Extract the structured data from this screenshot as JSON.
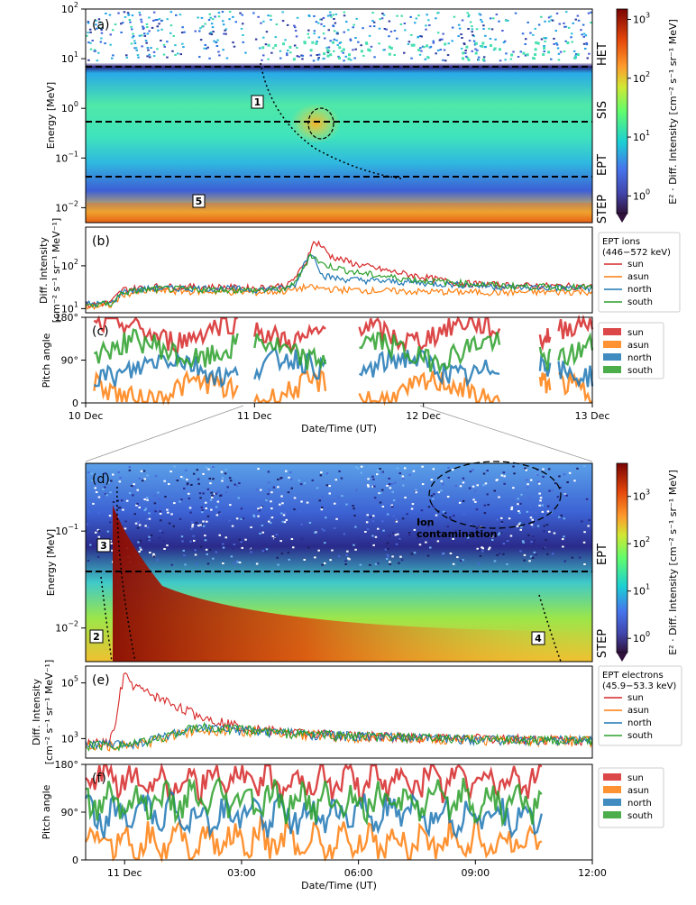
{
  "chart_data": [
    {
      "id": "a",
      "type": "heatmap",
      "panel_label": "(a)",
      "ylabel": "Energy [MeV]",
      "yscale": "log",
      "ylim": [
        0.005,
        100
      ],
      "y_ticks": [
        {
          "value": 0.01,
          "base": "10",
          "exp": "−2"
        },
        {
          "value": 0.1,
          "base": "10",
          "exp": "−1"
        },
        {
          "value": 1,
          "base": "10",
          "exp": "0"
        },
        {
          "value": 10,
          "base": "10",
          "exp": "1"
        },
        {
          "value": 100,
          "base": "10",
          "exp": "2"
        }
      ],
      "x_range_days": [
        0,
        3
      ],
      "instrument_labels": [
        "HET",
        "SIS",
        "EPT",
        "STEP"
      ],
      "boundaries_mev": [
        7,
        0.55,
        0.048
      ],
      "annotations": [
        "1",
        "5"
      ],
      "colorbar": {
        "label": "E² · Diff. Intensity [cm⁻² s⁻¹ sr⁻¹ MeV]",
        "range": [
          0.5,
          1500
        ],
        "ticks": [
          {
            "value": 1,
            "base": "10",
            "exp": "0"
          },
          {
            "value": 10,
            "base": "10",
            "exp": "1"
          },
          {
            "value": 100,
            "base": "10",
            "exp": "2"
          },
          {
            "value": 1000,
            "base": "10",
            "exp": "3"
          }
        ]
      }
    },
    {
      "id": "b",
      "type": "line",
      "panel_label": "(b)",
      "ylabel": "Diff. Intensity",
      "ylabel2": "[cm⁻² s⁻¹ sr⁻¹ MeV⁻¹]",
      "yscale": "log",
      "ylim": [
        8,
        800
      ],
      "y_ticks": [
        {
          "value": 10,
          "base": "10",
          "exp": "1"
        },
        {
          "value": 100,
          "base": "10",
          "exp": "2"
        }
      ],
      "x_range_days": [
        0,
        3
      ],
      "legend_title": [
        "EPT ions",
        "(446−572 keV)"
      ],
      "series": [
        {
          "name": "sun",
          "color": "#d62728",
          "x": [
            0,
            0.15,
            0.22,
            0.4,
            0.8,
            1.0,
            1.2,
            1.25,
            1.3,
            1.34,
            1.38,
            1.45,
            1.6,
            1.8,
            2.0,
            2.2,
            2.5,
            3.0
          ],
          "y": [
            12,
            14,
            28,
            33,
            32,
            30,
            36,
            60,
            110,
            330,
            340,
            170,
            110,
            75,
            55,
            40,
            35,
            33
          ]
        },
        {
          "name": "asun",
          "color": "#ff7f0e",
          "x": [
            0,
            0.15,
            0.22,
            0.4,
            0.8,
            1.0,
            1.2,
            1.3,
            1.38,
            1.5,
            1.8,
            2.0,
            2.5,
            3.0
          ],
          "y": [
            11,
            12,
            22,
            26,
            25,
            24,
            26,
            32,
            30,
            28,
            26,
            25,
            24,
            25
          ]
        },
        {
          "name": "north",
          "color": "#1f77b4",
          "x": [
            0,
            0.15,
            0.22,
            0.4,
            0.8,
            1.0,
            1.2,
            1.25,
            1.3,
            1.35,
            1.4,
            1.5,
            1.7,
            2.0,
            2.5,
            3.0
          ],
          "y": [
            13,
            13,
            25,
            30,
            30,
            28,
            30,
            40,
            140,
            200,
            60,
            50,
            45,
            40,
            32,
            30
          ]
        },
        {
          "name": "south",
          "color": "#2ca02c",
          "x": [
            0,
            0.15,
            0.22,
            0.4,
            0.8,
            1.0,
            1.2,
            1.28,
            1.33,
            1.4,
            1.6,
            1.8,
            2.0,
            2.5,
            3.0
          ],
          "y": [
            12,
            13,
            24,
            29,
            28,
            27,
            29,
            70,
            190,
            110,
            70,
            55,
            45,
            34,
            31
          ]
        }
      ]
    },
    {
      "id": "c",
      "type": "line",
      "panel_label": "(c)",
      "ylabel": "Pitch angle",
      "ylim": [
        0,
        180
      ],
      "y_ticks": [
        {
          "value": 0,
          "label": "0"
        },
        {
          "value": 90,
          "label": "90°"
        },
        {
          "value": 180,
          "label": "180°"
        }
      ],
      "x_range_days": [
        0,
        3
      ],
      "x_ticks": [
        "10 Dec",
        "11 Dec",
        "12 Dec",
        "13 Dec"
      ],
      "xlabel": "Date/Time (UT)",
      "data_segments_days": [
        [
          0.05,
          0.9
        ],
        [
          1.0,
          1.42
        ],
        [
          1.62,
          2.45
        ],
        [
          2.69,
          2.75
        ],
        [
          2.8,
          3.0
        ]
      ],
      "series": [
        {
          "name": "sun",
          "color": "#d62728",
          "mean_deg": 150
        },
        {
          "name": "asun",
          "color": "#ff7f0e",
          "mean_deg": 25
        },
        {
          "name": "north",
          "color": "#1f77b4",
          "mean_deg": 75
        },
        {
          "name": "south",
          "color": "#2ca02c",
          "mean_deg": 110
        }
      ]
    },
    {
      "id": "d",
      "type": "heatmap",
      "panel_label": "(d)",
      "ylabel": "Energy [MeV]",
      "yscale": "log",
      "ylim": [
        0.0045,
        0.5
      ],
      "y_ticks": [
        {
          "value": 0.01,
          "base": "10",
          "exp": "−2"
        },
        {
          "value": 0.1,
          "base": "10",
          "exp": "−1"
        }
      ],
      "x_range_hours": [
        -1,
        12
      ],
      "instrument_labels": [
        "EPT",
        "STEP"
      ],
      "boundaries_mev": [
        0.035
      ],
      "annotation_text": [
        "Ion",
        "contamination"
      ],
      "annotations": [
        "3",
        "2",
        "4"
      ],
      "colorbar": {
        "label": "E² · Diff. Intensity [cm⁻² s⁻¹ sr⁻¹ MeV]",
        "range": [
          0.5,
          5000
        ],
        "ticks": [
          {
            "value": 1,
            "base": "10",
            "exp": "0"
          },
          {
            "value": 10,
            "base": "10",
            "exp": "1"
          },
          {
            "value": 100,
            "base": "10",
            "exp": "2"
          },
          {
            "value": 1000,
            "base": "10",
            "exp": "3"
          }
        ]
      }
    },
    {
      "id": "e",
      "type": "line",
      "panel_label": "(e)",
      "ylabel": "Diff. Intensity",
      "ylabel2": "[cm⁻² s⁻¹ sr⁻¹ MeV⁻¹]",
      "yscale": "log",
      "ylim": [
        200,
        400000
      ],
      "y_ticks": [
        {
          "value": 1000,
          "base": "10",
          "exp": "3"
        },
        {
          "value": 100000,
          "base": "10",
          "exp": "5"
        }
      ],
      "x_range_hours": [
        -1,
        12
      ],
      "legend_title": [
        "EPT electrons",
        "(45.9−53.3 keV)"
      ],
      "series": [
        {
          "name": "sun",
          "color": "#d62728",
          "x": [
            -1,
            -0.4,
            -0.2,
            -0.1,
            0.0,
            0.2,
            0.5,
            1.0,
            1.5,
            2.0,
            3.0,
            4.0,
            6.0,
            8.0,
            12.0
          ],
          "y": [
            700,
            700,
            5000,
            60000,
            200000,
            90000,
            50000,
            25000,
            12000,
            6000,
            2800,
            1800,
            1300,
            1100,
            900
          ]
        },
        {
          "name": "asun",
          "color": "#ff7f0e",
          "x": [
            -1,
            0.0,
            0.5,
            1.0,
            1.5,
            2.0,
            3.0,
            4.0,
            6.0,
            8.0,
            12.0
          ],
          "y": [
            600,
            600,
            700,
            1100,
            1700,
            2200,
            2000,
            1600,
            1200,
            1000,
            850
          ]
        },
        {
          "name": "north",
          "color": "#1f77b4",
          "x": [
            -1,
            0.0,
            0.5,
            1.0,
            1.5,
            2.0,
            3.0,
            4.0,
            6.0,
            8.0,
            12.0
          ],
          "y": [
            650,
            650,
            800,
            1300,
            1900,
            2300,
            2100,
            1700,
            1250,
            1050,
            880
          ]
        },
        {
          "name": "south",
          "color": "#2ca02c",
          "x": [
            -1,
            0.0,
            0.5,
            1.0,
            1.5,
            2.0,
            3.0,
            4.0,
            6.0,
            8.0,
            12.0
          ],
          "y": [
            620,
            620,
            750,
            1200,
            2000,
            2600,
            2200,
            1700,
            1250,
            1050,
            870
          ]
        }
      ]
    },
    {
      "id": "f",
      "type": "line",
      "panel_label": "(f)",
      "ylabel": "Pitch angle",
      "ylim": [
        0,
        180
      ],
      "y_ticks": [
        {
          "value": 0,
          "label": "0"
        },
        {
          "value": 90,
          "label": "90°"
        },
        {
          "value": 180,
          "label": "180°"
        }
      ],
      "x_range_hours": [
        -1,
        12
      ],
      "x_ticks": [
        {
          "value": 0,
          "label": "11 Dec"
        },
        {
          "value": 3,
          "label": "03:00"
        },
        {
          "value": 6,
          "label": "06:00"
        },
        {
          "value": 9,
          "label": "09:00"
        },
        {
          "value": 12,
          "label": "12:00"
        }
      ],
      "xlabel": "Date/Time (UT)",
      "data_range_hours": [
        -1,
        10.7
      ],
      "series": [
        {
          "name": "sun",
          "color": "#d62728",
          "mean_deg": 150
        },
        {
          "name": "asun",
          "color": "#ff7f0e",
          "mean_deg": 35
        },
        {
          "name": "north",
          "color": "#1f77b4",
          "mean_deg": 85
        },
        {
          "name": "south",
          "color": "#2ca02c",
          "mean_deg": 110
        }
      ]
    }
  ]
}
